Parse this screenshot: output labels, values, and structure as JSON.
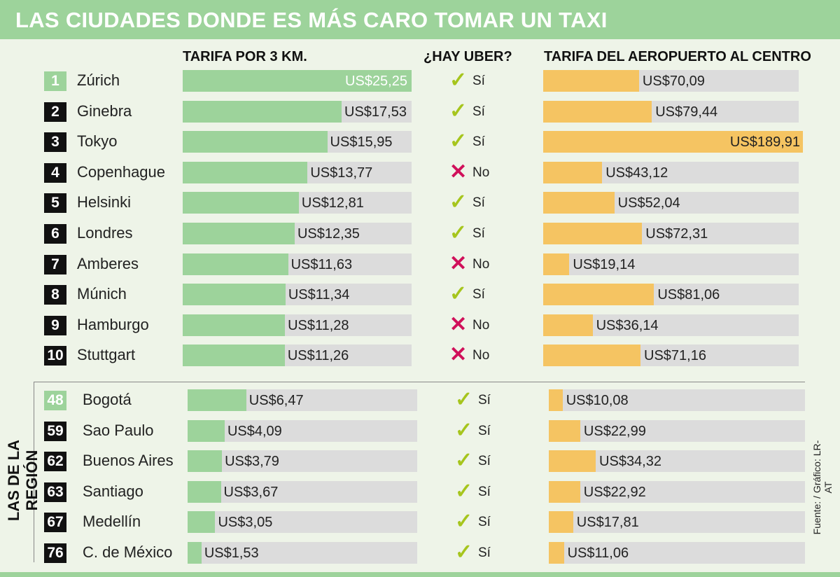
{
  "title": "LAS CIUDADES DONDE ES MÁS CARO TOMAR UN TAXI",
  "headers": {
    "fare": "TARIFA POR 3 KM.",
    "uber": "¿HAY UBER?",
    "airport": "TARIFA DEL AEROPUERTO AL CENTRO"
  },
  "region_label": "LAS DE LA REGIÓN",
  "source": "Fuente: / Gráfico: LR-AT",
  "colors": {
    "green": "#9dd39b",
    "orange": "#f5c462",
    "check": "#a6c51d",
    "cross": "#d0105a"
  },
  "chart_data": {
    "type": "bar",
    "title": "LAS CIUDADES DONDE ES MÁS CARO TOMAR UN TAXI",
    "series": [
      {
        "name": "TARIFA POR 3 KM.",
        "max": 25.25
      },
      {
        "name": "TARIFA DEL AEROPUERTO AL CENTRO",
        "max": 189.91
      }
    ],
    "top": [
      {
        "rank": "1",
        "city": "Zúrich",
        "fare": 25.25,
        "fare_label": "US$25,25",
        "uber": "Sí",
        "airport": 70.09,
        "airport_label": "US$70,09"
      },
      {
        "rank": "2",
        "city": "Ginebra",
        "fare": 17.53,
        "fare_label": "US$17,53",
        "uber": "Sí",
        "airport": 79.44,
        "airport_label": "US$79,44"
      },
      {
        "rank": "3",
        "city": "Tokyo",
        "fare": 15.95,
        "fare_label": "US$15,95",
        "uber": "Sí",
        "airport": 189.91,
        "airport_label": "US$189,91"
      },
      {
        "rank": "4",
        "city": "Copenhague",
        "fare": 13.77,
        "fare_label": "US$13,77",
        "uber": "No",
        "airport": 43.12,
        "airport_label": "US$43,12"
      },
      {
        "rank": "5",
        "city": "Helsinki",
        "fare": 12.81,
        "fare_label": "US$12,81",
        "uber": "Sí",
        "airport": 52.04,
        "airport_label": "US$52,04"
      },
      {
        "rank": "6",
        "city": "Londres",
        "fare": 12.35,
        "fare_label": "US$12,35",
        "uber": "Sí",
        "airport": 72.31,
        "airport_label": "US$72,31"
      },
      {
        "rank": "7",
        "city": "Amberes",
        "fare": 11.63,
        "fare_label": "US$11,63",
        "uber": "No",
        "airport": 19.14,
        "airport_label": "US$19,14"
      },
      {
        "rank": "8",
        "city": "Múnich",
        "fare": 11.34,
        "fare_label": "US$11,34",
        "uber": "Sí",
        "airport": 81.06,
        "airport_label": "US$81,06"
      },
      {
        "rank": "9",
        "city": "Hamburgo",
        "fare": 11.28,
        "fare_label": "US$11,28",
        "uber": "No",
        "airport": 36.14,
        "airport_label": "US$36,14"
      },
      {
        "rank": "10",
        "city": "Stuttgart",
        "fare": 11.26,
        "fare_label": "US$11,26",
        "uber": "No",
        "airport": 71.16,
        "airport_label": "US$71,16"
      }
    ],
    "region": [
      {
        "rank": "48",
        "city": "Bogotá",
        "fare": 6.47,
        "fare_label": "US$6,47",
        "uber": "Sí",
        "airport": 10.08,
        "airport_label": "US$10,08"
      },
      {
        "rank": "59",
        "city": "Sao Paulo",
        "fare": 4.09,
        "fare_label": "US$4,09",
        "uber": "Sí",
        "airport": 22.99,
        "airport_label": "US$22,99"
      },
      {
        "rank": "62",
        "city": "Buenos Aires",
        "fare": 3.79,
        "fare_label": "US$3,79",
        "uber": "Sí",
        "airport": 34.32,
        "airport_label": "US$34,32"
      },
      {
        "rank": "63",
        "city": "Santiago",
        "fare": 3.67,
        "fare_label": "US$3,67",
        "uber": "Sí",
        "airport": 22.92,
        "airport_label": "US$22,92"
      },
      {
        "rank": "67",
        "city": "Medellín",
        "fare": 3.05,
        "fare_label": "US$3,05",
        "uber": "Sí",
        "airport": 17.81,
        "airport_label": "US$17,81"
      },
      {
        "rank": "76",
        "city": "C. de México",
        "fare": 1.53,
        "fare_label": "US$1,53",
        "uber": "Sí",
        "airport": 11.06,
        "airport_label": "US$11,06"
      }
    ]
  }
}
